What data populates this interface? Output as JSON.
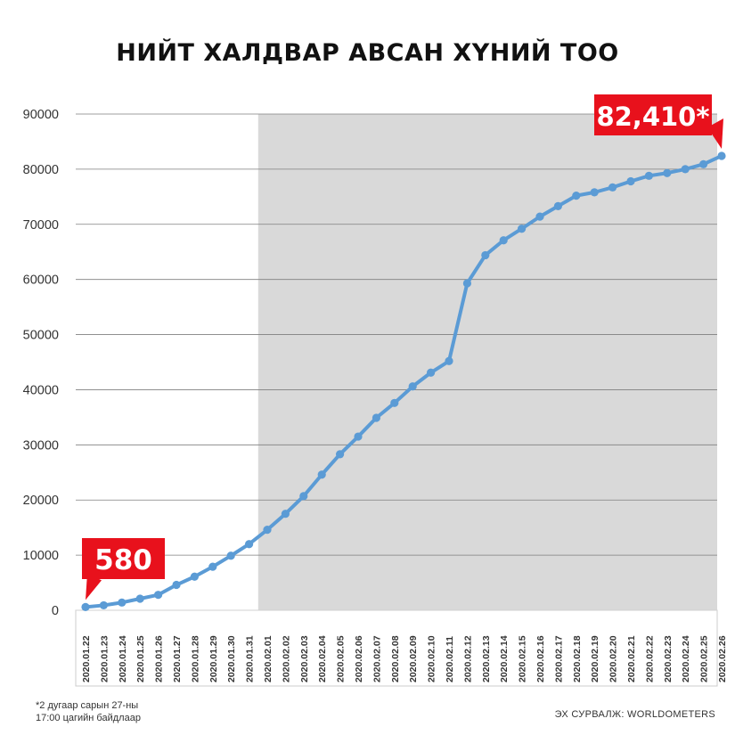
{
  "chart_data": {
    "type": "line",
    "title": "НИЙТ ХАЛДВАР АВСАН ХҮНИЙ ТОО",
    "xlabel": "",
    "ylabel": "",
    "ylim": [
      0,
      90000
    ],
    "yticks": [
      "0",
      "10000",
      "20000",
      "30000",
      "40000",
      "50000",
      "60000",
      "70000",
      "80000",
      "90000"
    ],
    "grid": true,
    "shaded_from_category": "2020.02.01",
    "categories": [
      "2020.01.22",
      "2020.01.23",
      "2020.01.24",
      "2020.01.25",
      "2020.01.26",
      "2020.01.27",
      "2020.01.28",
      "2020.01.29",
      "2020.01.30",
      "2020.01.31",
      "2020.02.01",
      "2020.02.02",
      "2020.02.03",
      "2020.02.04",
      "2020.02.05",
      "2020.02.06",
      "2020.02.07",
      "2020.02.08",
      "2020.02.09",
      "2020.02.10",
      "2020.02.11",
      "2020.02.12",
      "2020.02.13",
      "2020.02.14",
      "2020.02.15",
      "2020.02.16",
      "2020.02.17",
      "2020.02.18",
      "2020.02.19",
      "2020.02.20",
      "2020.02.21",
      "2020.02.22",
      "2020.02.23",
      "2020.02.24",
      "2020.02.25",
      "2020.02.26"
    ],
    "series": [
      {
        "values": [
          580,
          900,
          1400,
          2100,
          2800,
          4600,
          6100,
          7900,
          9900,
          12000,
          14600,
          17500,
          20700,
          24600,
          28300,
          31500,
          34900,
          37600,
          40600,
          43100,
          45200,
          59300,
          64400,
          67100,
          69200,
          71400,
          73300,
          75200,
          75800,
          76700,
          77800,
          78800,
          79300,
          80000,
          80900,
          82410
        ]
      }
    ],
    "annotations": [
      {
        "text": "580",
        "category": "2020.01.22",
        "value": 580
      },
      {
        "text": "82,410*",
        "category": "2020.02.26",
        "value": 82410
      }
    ],
    "colors": {
      "line": "#5b9bd5",
      "shade": "#d9d9d9",
      "callout": "#e8111c",
      "grid": "#7f7f7f"
    }
  },
  "footnote": [
    "*2 дугаар сарын 27-ны",
    "17:00 цагийн байдлаар"
  ],
  "source": "ЭХ СУРВАЛЖ: WORLDOMETERS"
}
